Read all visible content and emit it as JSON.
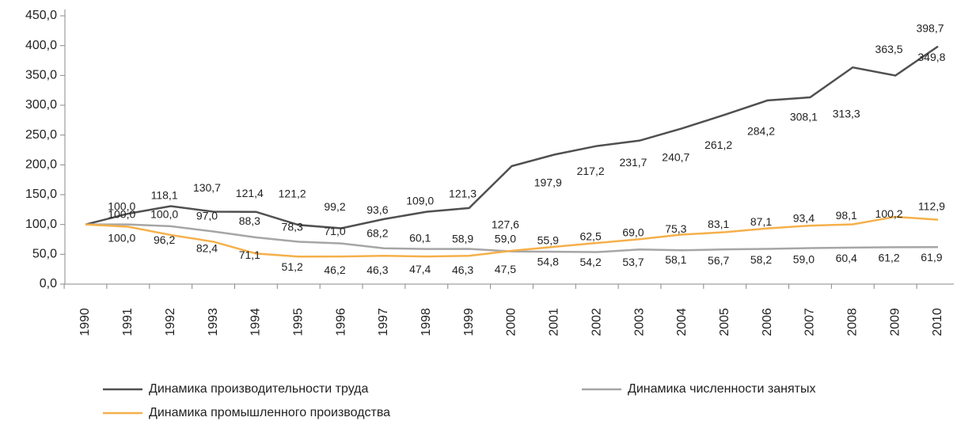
{
  "chart_data": {
    "type": "line",
    "categories": [
      "1990",
      "1991",
      "1992",
      "1993",
      "1994",
      "1995",
      "1996",
      "1997",
      "1998",
      "1999",
      "2000",
      "2001",
      "2002",
      "2003",
      "2004",
      "2005",
      "2006",
      "2007",
      "2008",
      "2009",
      "2010"
    ],
    "series": [
      {
        "name": "Динамика производительности труда",
        "color": "#505050",
        "values": [
          100.0,
          118.1,
          130.7,
          121.4,
          121.2,
          99.2,
          93.6,
          109.0,
          121.3,
          127.6,
          197.9,
          217.2,
          231.7,
          240.7,
          261.2,
          284.2,
          308.1,
          313.3,
          363.5,
          349.8,
          398.7
        ],
        "value_labels": [
          "100,0",
          "118,1",
          "130,7",
          "121,4",
          "121,2",
          "99,2",
          "93,6",
          "109,0",
          "121,3",
          "127,6",
          "197,9",
          "217,2",
          "231,7",
          "240,7",
          "261,2",
          "284,2",
          "308,1",
          "313,3",
          "363,5",
          "349,8",
          "398,7"
        ]
      },
      {
        "name": "Динамика численности занятых",
        "color": "#a6a6a6",
        "values": [
          100.0,
          100.0,
          97.0,
          88.3,
          78.3,
          71.0,
          68.2,
          60.1,
          58.9,
          59.0,
          54.8,
          54.2,
          53.7,
          58.1,
          56.7,
          58.2,
          59.0,
          60.4,
          61.2,
          61.9,
          62
        ],
        "value_labels": [
          "100,0",
          "100,0",
          "97,0",
          "88,3",
          "78,3",
          "71,0",
          "68,2",
          "60,1",
          "58,9",
          "59,0",
          "54,8",
          "54,2",
          "53,7",
          "58,1",
          "56,7",
          "58,2",
          "59,0",
          "60,4",
          "61,2",
          "61,9",
          null
        ]
      },
      {
        "name": "Динамика промышленного производства",
        "color": "#f5b04a",
        "values": [
          100.0,
          96.2,
          82.4,
          71.1,
          51.2,
          46.2,
          46.3,
          47.4,
          46.3,
          47.5,
          55.9,
          62.5,
          69.0,
          75.3,
          83.1,
          87.1,
          93.4,
          98.1,
          100.2,
          112.9,
          108
        ],
        "value_labels": [
          "100,0",
          "96,2",
          "82,4",
          "71,1",
          "51,2",
          "46,2",
          "46,3",
          "47,4",
          "46,3",
          "47,5",
          "55,9",
          "62,5",
          "69,0",
          "75,3",
          "83,1",
          "87,1",
          "93,4",
          "98,1",
          "100,2",
          "112,9",
          null
        ]
      }
    ],
    "ylim": [
      0,
      450
    ],
    "yticks": [
      {
        "value": 0,
        "label": "0,0"
      },
      {
        "value": 50,
        "label": "50,0"
      },
      {
        "value": 100,
        "label": "100,0"
      },
      {
        "value": 150,
        "label": "150,0"
      },
      {
        "value": 200,
        "label": "200,0"
      },
      {
        "value": 250,
        "label": "250,0"
      },
      {
        "value": 300,
        "label": "300,0"
      },
      {
        "value": 350,
        "label": "350,0"
      },
      {
        "value": 400,
        "label": "400,0"
      },
      {
        "value": 450,
        "label": "450,0"
      }
    ],
    "grid": false,
    "legend": "bottom"
  }
}
